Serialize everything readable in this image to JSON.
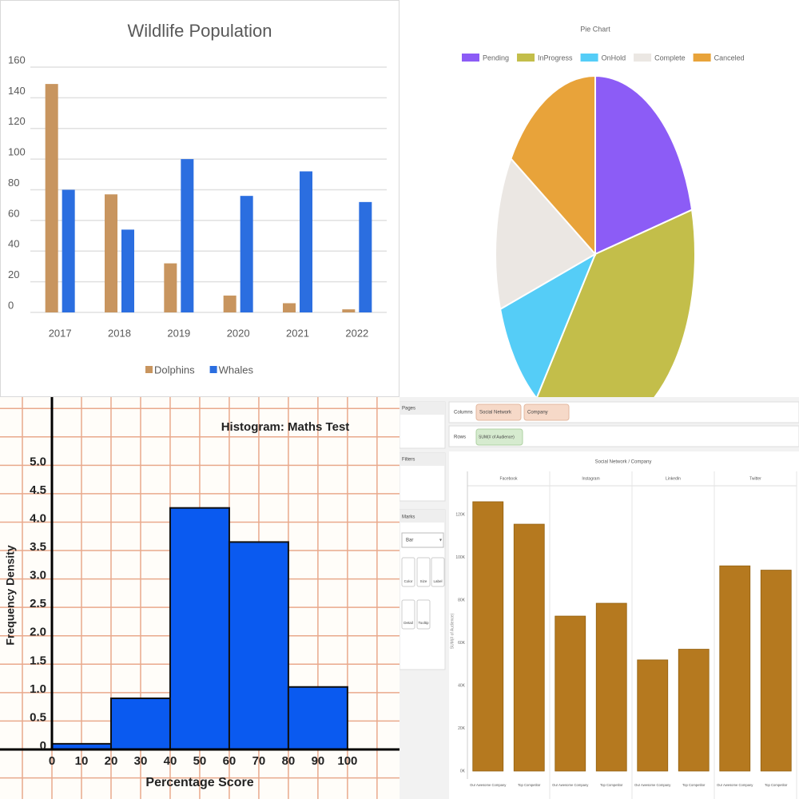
{
  "chart_data": [
    {
      "type": "bar",
      "title": "Wildlife Population",
      "categories": [
        "2017",
        "2018",
        "2019",
        "2020",
        "2021",
        "2022"
      ],
      "series": [
        {
          "name": "Dolphins",
          "color": "#c8955f",
          "values": [
            149,
            77,
            32,
            11,
            6,
            2
          ]
        },
        {
          "name": "Whales",
          "color": "#2b6ee0",
          "values": [
            80,
            54,
            100,
            76,
            92,
            72
          ]
        }
      ],
      "ylim": [
        0,
        160
      ],
      "yticks": [
        0,
        20,
        40,
        60,
        80,
        100,
        120,
        140,
        160
      ],
      "grid": true,
      "legend": "bottom"
    },
    {
      "type": "pie",
      "title": "Pie Chart",
      "categories": [
        "Pending",
        "InProgress",
        "OnHold",
        "Complete",
        "Canceled"
      ],
      "values": [
        21,
        39,
        10,
        14,
        16
      ],
      "colors": [
        "#8c5cf6",
        "#c3be4a",
        "#55cdf7",
        "#ebe7e3",
        "#e8a33a"
      ],
      "legend": "top"
    },
    {
      "type": "histogram",
      "title": "Histogram: Maths Test",
      "xlabel": "Percentage Score",
      "ylabel": "Frequency Density",
      "bins": [
        0,
        20,
        40,
        60,
        80,
        100
      ],
      "values": [
        0.1,
        0.9,
        4.25,
        3.65,
        1.1
      ],
      "color": "#0a5af0",
      "xlim": [
        0,
        117.6
      ],
      "ylim": [
        0,
        6.2
      ],
      "xticks": [
        0,
        10,
        20,
        30,
        40,
        50,
        60,
        70,
        80,
        90,
        100
      ],
      "yticks": [
        0,
        0.5,
        {
          "value": 1,
          "label": "1.0"
        },
        1.5,
        {
          "value": 2,
          "label": "2.0"
        },
        2.5,
        {
          "value": 3,
          "label": "3.0"
        },
        3.5,
        {
          "value": 4,
          "label": "4.0"
        },
        4.5,
        {
          "value": 5,
          "label": "5.0"
        }
      ],
      "grid": true
    },
    {
      "type": "grouped_bar",
      "title": "Social Network / Company",
      "ylabel": "SUM(# of Audience)",
      "categories": [
        "Facebook",
        "Instagram",
        "LinkedIn",
        "Twitter"
      ],
      "series": [
        {
          "name": "Our Awesome Company",
          "color": "#b5791f",
          "values": [
            126000,
            72500,
            52000,
            96000
          ]
        },
        {
          "name": "Top Competitor",
          "color": "#b5791f",
          "values": [
            115500,
            78500,
            57000,
            94000
          ]
        }
      ],
      "ylim": [
        0,
        140000
      ],
      "yticks": [
        {
          "value": 0,
          "label": "0K"
        },
        {
          "value": 20000,
          "label": "20K"
        },
        {
          "value": 40000,
          "label": "40K"
        },
        {
          "value": 60000,
          "label": "60K"
        },
        {
          "value": 80000,
          "label": "80K"
        },
        {
          "value": 100000,
          "label": "100K"
        },
        {
          "value": 120000,
          "label": "120K"
        }
      ]
    }
  ],
  "tableau_ui": {
    "pages": "Pages",
    "columns_label": "Columns",
    "rows_label": "Rows",
    "filters": "Filters",
    "marks": "Marks",
    "mark_type": "Bar",
    "columns_pills": [
      "Social Network",
      "Company"
    ],
    "rows_pills": [
      "SUM(# of Audience)"
    ],
    "mark_buttons": [
      "Color",
      "Size",
      "Label",
      "Detail",
      "Tooltip"
    ]
  }
}
